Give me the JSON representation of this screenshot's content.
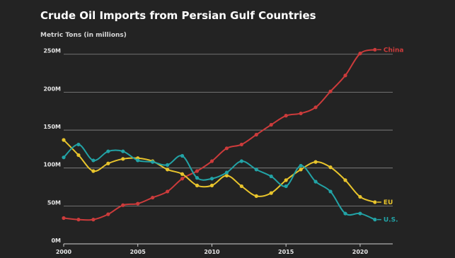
{
  "chart_data": {
    "type": "line",
    "title": "Crude Oil Imports from Persian Gulf Countries",
    "ylabel": "Metric Tons (in millions)",
    "xlabel": "",
    "x": [
      2000,
      2001,
      2002,
      2003,
      2004,
      2005,
      2006,
      2007,
      2008,
      2009,
      2010,
      2011,
      2012,
      2013,
      2014,
      2015,
      2016,
      2017,
      2018,
      2019,
      2020,
      2021
    ],
    "xlim": [
      2000,
      2022.2
    ],
    "ylim": [
      0,
      260
    ],
    "y_ticks": [
      0,
      50,
      100,
      150,
      200,
      250
    ],
    "y_tick_labels": [
      "0M",
      "50M",
      "100M",
      "150M",
      "200M",
      "250M"
    ],
    "x_ticks": [
      2000,
      2005,
      2010,
      2015,
      2020
    ],
    "x_tick_labels": [
      "2000",
      "2005",
      "2010",
      "2015",
      "2020"
    ],
    "grid": true,
    "legend": "end-of-line labels",
    "series": [
      {
        "name": "China",
        "color": "#cc3b3b",
        "values": [
          34,
          32,
          32,
          39,
          51,
          53,
          61,
          69,
          86,
          96,
          109,
          126,
          131,
          144,
          157,
          169,
          172,
          180,
          201,
          222,
          251,
          256
        ]
      },
      {
        "name": "EU",
        "color": "#e8c42c",
        "values": [
          137,
          117,
          96,
          106,
          112,
          113,
          109,
          98,
          92,
          77,
          77,
          90,
          76,
          63,
          67,
          84,
          98,
          108,
          101,
          84,
          62,
          55
        ]
      },
      {
        "name": "U.S.",
        "color": "#22a3a6",
        "values": [
          114,
          131,
          110,
          122,
          122,
          110,
          108,
          104,
          116,
          87,
          86,
          94,
          109,
          98,
          89,
          76,
          103,
          82,
          69,
          40,
          40,
          32
        ]
      }
    ]
  }
}
